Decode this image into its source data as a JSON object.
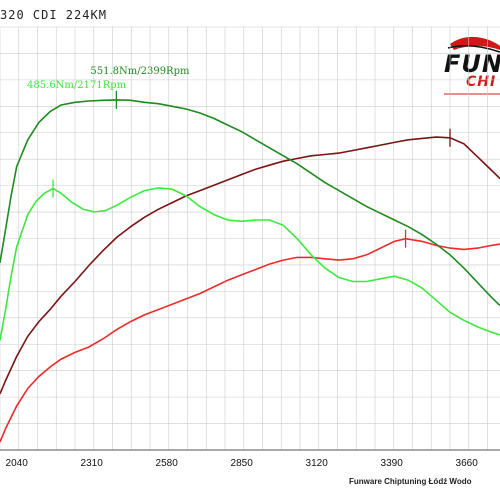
{
  "title": "320 CDI 224KM",
  "logo": {
    "main": "FUN",
    "sub": "CHI",
    "icon": "car-silhouette-icon"
  },
  "footer": "Funware Chiptuning Łódź Wodo",
  "colors": {
    "tuned_torque": "#1f8a1f",
    "stock_torque": "#3ee83e",
    "tuned_power": "#7a1414",
    "stock_power": "#ee2a2a",
    "grid": "#cccccc"
  },
  "chart_data": {
    "type": "line",
    "xlabel": "",
    "ylabel": "",
    "x_ticks": [
      2040,
      2310,
      2580,
      2850,
      3120,
      3390,
      3660
    ],
    "xlim": [
      1980,
      3780
    ],
    "grid": true,
    "annotations": [
      {
        "text": "551.8Nm/2399Rpm",
        "series": "tuned_torque",
        "x": 2399,
        "y": 551.8
      },
      {
        "text": "485.6Nm/2171Rpm",
        "series": "stock_torque",
        "x": 2171,
        "y": 485.6
      }
    ],
    "series": [
      {
        "id": "tuned_torque",
        "color": "#1f8a1f",
        "marker_x": 2399,
        "points": [
          [
            1980,
            430
          ],
          [
            2000,
            455
          ],
          [
            2020,
            480
          ],
          [
            2040,
            502
          ],
          [
            2080,
            522
          ],
          [
            2120,
            535
          ],
          [
            2160,
            543
          ],
          [
            2200,
            548
          ],
          [
            2250,
            550
          ],
          [
            2300,
            551
          ],
          [
            2350,
            551.5
          ],
          [
            2399,
            551.8
          ],
          [
            2450,
            551.5
          ],
          [
            2500,
            550
          ],
          [
            2550,
            549
          ],
          [
            2600,
            547
          ],
          [
            2650,
            545
          ],
          [
            2700,
            542
          ],
          [
            2750,
            538
          ],
          [
            2800,
            533
          ],
          [
            2850,
            528
          ],
          [
            2900,
            522
          ],
          [
            2950,
            516
          ],
          [
            3000,
            510
          ],
          [
            3050,
            504
          ],
          [
            3100,
            497
          ],
          [
            3150,
            490
          ],
          [
            3200,
            484
          ],
          [
            3250,
            478
          ],
          [
            3300,
            472
          ],
          [
            3350,
            467
          ],
          [
            3400,
            462
          ],
          [
            3450,
            457
          ],
          [
            3500,
            451
          ],
          [
            3550,
            444
          ],
          [
            3600,
            436
          ],
          [
            3650,
            426
          ],
          [
            3700,
            415
          ],
          [
            3750,
            404
          ],
          [
            3780,
            398
          ]
        ]
      },
      {
        "id": "stock_torque",
        "color": "#3ee83e",
        "marker_x": 2171,
        "points": [
          [
            1980,
            372
          ],
          [
            2000,
            395
          ],
          [
            2020,
            420
          ],
          [
            2040,
            442
          ],
          [
            2080,
            466
          ],
          [
            2110,
            476
          ],
          [
            2140,
            482
          ],
          [
            2171,
            485.6
          ],
          [
            2200,
            482
          ],
          [
            2240,
            475
          ],
          [
            2280,
            470
          ],
          [
            2320,
            468
          ],
          [
            2360,
            469
          ],
          [
            2400,
            473
          ],
          [
            2450,
            479
          ],
          [
            2500,
            484
          ],
          [
            2550,
            486
          ],
          [
            2600,
            485
          ],
          [
            2650,
            480
          ],
          [
            2700,
            472
          ],
          [
            2750,
            466
          ],
          [
            2800,
            462
          ],
          [
            2850,
            461
          ],
          [
            2900,
            462
          ],
          [
            2950,
            462
          ],
          [
            3000,
            458
          ],
          [
            3050,
            448
          ],
          [
            3100,
            436
          ],
          [
            3150,
            426
          ],
          [
            3200,
            419
          ],
          [
            3250,
            416
          ],
          [
            3300,
            416
          ],
          [
            3350,
            418
          ],
          [
            3400,
            420
          ],
          [
            3450,
            417
          ],
          [
            3500,
            411
          ],
          [
            3550,
            402
          ],
          [
            3600,
            393
          ],
          [
            3650,
            387
          ],
          [
            3700,
            382
          ],
          [
            3750,
            378
          ],
          [
            3780,
            376
          ]
        ]
      },
      {
        "id": "tuned_power",
        "color": "#7a1414",
        "marker_x": 3600,
        "points": [
          [
            1980,
            332
          ],
          [
            2000,
            342
          ],
          [
            2040,
            360
          ],
          [
            2080,
            375
          ],
          [
            2120,
            386
          ],
          [
            2160,
            395
          ],
          [
            2200,
            405
          ],
          [
            2250,
            416
          ],
          [
            2300,
            428
          ],
          [
            2350,
            439
          ],
          [
            2400,
            449
          ],
          [
            2450,
            457
          ],
          [
            2500,
            464
          ],
          [
            2550,
            470
          ],
          [
            2600,
            475
          ],
          [
            2650,
            480
          ],
          [
            2700,
            484
          ],
          [
            2750,
            488
          ],
          [
            2800,
            492
          ],
          [
            2850,
            496
          ],
          [
            2900,
            500
          ],
          [
            2950,
            503
          ],
          [
            3000,
            506
          ],
          [
            3050,
            508
          ],
          [
            3100,
            510
          ],
          [
            3150,
            511
          ],
          [
            3200,
            512
          ],
          [
            3250,
            514
          ],
          [
            3300,
            516
          ],
          [
            3350,
            518
          ],
          [
            3400,
            520
          ],
          [
            3450,
            522
          ],
          [
            3500,
            523
          ],
          [
            3550,
            524
          ],
          [
            3600,
            523.5
          ],
          [
            3650,
            519
          ],
          [
            3700,
            509
          ],
          [
            3750,
            499
          ],
          [
            3780,
            493
          ]
        ]
      },
      {
        "id": "stock_power",
        "color": "#ee2a2a",
        "marker_x": 3440,
        "points": [
          [
            1980,
            296
          ],
          [
            2000,
            306
          ],
          [
            2040,
            323
          ],
          [
            2080,
            336
          ],
          [
            2120,
            345
          ],
          [
            2160,
            352
          ],
          [
            2200,
            358
          ],
          [
            2250,
            363
          ],
          [
            2300,
            367
          ],
          [
            2350,
            373
          ],
          [
            2400,
            380
          ],
          [
            2450,
            386
          ],
          [
            2500,
            391
          ],
          [
            2550,
            395
          ],
          [
            2600,
            399
          ],
          [
            2650,
            403
          ],
          [
            2700,
            407
          ],
          [
            2750,
            412
          ],
          [
            2800,
            417
          ],
          [
            2850,
            421
          ],
          [
            2900,
            425
          ],
          [
            2950,
            429
          ],
          [
            3000,
            432
          ],
          [
            3050,
            434
          ],
          [
            3100,
            434
          ],
          [
            3150,
            433
          ],
          [
            3200,
            432
          ],
          [
            3250,
            433
          ],
          [
            3300,
            436
          ],
          [
            3350,
            441
          ],
          [
            3400,
            446
          ],
          [
            3440,
            448
          ],
          [
            3500,
            446
          ],
          [
            3550,
            443
          ],
          [
            3600,
            441
          ],
          [
            3650,
            440
          ],
          [
            3700,
            441
          ],
          [
            3750,
            443
          ],
          [
            3780,
            444
          ]
        ]
      }
    ]
  }
}
